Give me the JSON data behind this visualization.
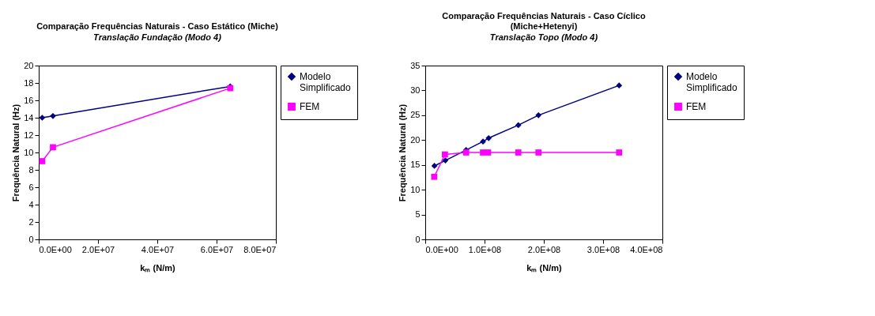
{
  "chart_data": [
    {
      "type": "line",
      "title": "Comparação Frequências Naturais - Caso Estático (Miche)",
      "subtitle": "Translação Fundação (Modo 4)",
      "xlabel": "kₘ (N/m)",
      "ylabel": "Frequência Natural (Hz)",
      "xlim": [
        0,
        80000000
      ],
      "xticks": [
        {
          "value": 0,
          "label": "0.0E+00"
        },
        {
          "value": 20000000,
          "label": "2.0E+07"
        },
        {
          "value": 40000000,
          "label": "4.0E+07"
        },
        {
          "value": 60000000,
          "label": "6.0E+07"
        },
        {
          "value": 80000000,
          "label": "8.0E+07"
        }
      ],
      "ylim": [
        0,
        20
      ],
      "yticks": [
        0,
        2,
        4,
        6,
        8,
        10,
        12,
        14,
        16,
        18,
        20
      ],
      "grid": false,
      "legend": "right",
      "series": [
        {
          "name": "Modelo Simplificado",
          "color": "#000080",
          "marker": "diamond",
          "x": [
            1160000,
            4800000,
            64600000
          ],
          "values": [
            14.0,
            14.2,
            17.6
          ]
        },
        {
          "name": "FEM",
          "color": "#ff00ff",
          "marker": "square",
          "x": [
            1160000,
            4800000,
            64600000
          ],
          "values": [
            9.0,
            10.6,
            17.4
          ]
        }
      ]
    },
    {
      "type": "line",
      "title": "Comparação Frequências Naturais - Caso Cíclico (Miche+Hetenyi)",
      "subtitle": "Translação Topo (Modo 4)",
      "xlabel": "kₘ (N/m)",
      "ylabel": "Frequência Natural (Hz)",
      "xlim": [
        0,
        400000000
      ],
      "xticks": [
        {
          "value": 0,
          "label": "0.0E+00"
        },
        {
          "value": 100000000,
          "label": "1.0E+08"
        },
        {
          "value": 200000000,
          "label": "2.0E+08"
        },
        {
          "value": 300000000,
          "label": "3.0E+08"
        },
        {
          "value": 400000000,
          "label": "4.0E+08"
        }
      ],
      "ylim": [
        0,
        35
      ],
      "yticks": [
        0,
        5,
        10,
        15,
        20,
        25,
        30,
        35
      ],
      "grid": false,
      "legend": "right",
      "series": [
        {
          "name": "Modelo Simplificado",
          "color": "#000080",
          "marker": "diamond",
          "x": [
            15500000,
            34000000,
            69000000,
            97400000,
            107000000,
            157000000,
            191000000,
            327000000
          ],
          "values": [
            14.8,
            15.9,
            18.0,
            19.7,
            20.4,
            23.0,
            25.0,
            31.0
          ]
        },
        {
          "name": "FEM",
          "color": "#ff00ff",
          "marker": "square",
          "x": [
            15100000,
            33200000,
            69000000,
            97400000,
            106000000,
            157000000,
            191000000,
            327000000
          ],
          "values": [
            12.6,
            17.1,
            17.5,
            17.5,
            17.5,
            17.5,
            17.5,
            17.5
          ]
        }
      ]
    }
  ]
}
